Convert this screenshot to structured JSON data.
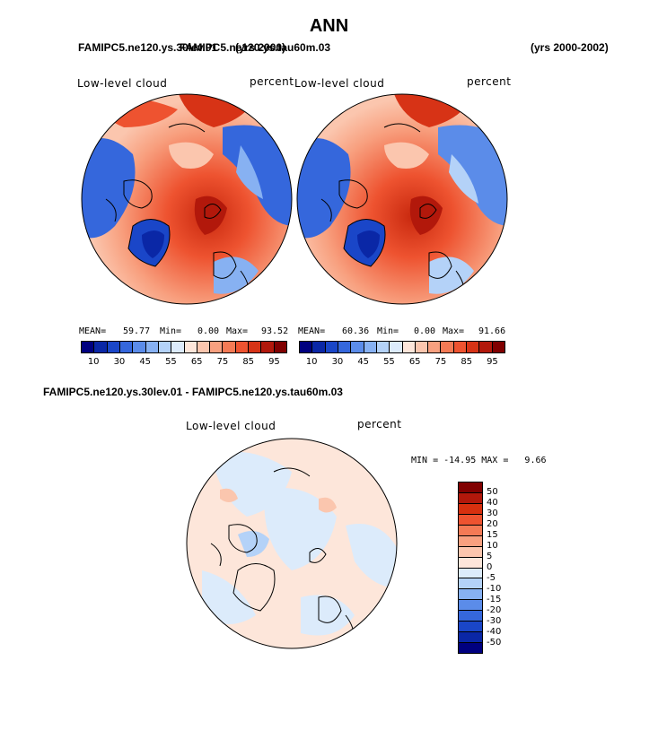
{
  "header": {
    "season": "ANN",
    "case_top_left": "FAMIPC5.ne120.ys.30lev.01",
    "case_top_left_overlap": "FAMIPC5.ne120.ys.tau60m.03",
    "years_overlap": "(yrs 2000)",
    "years_right": "(yrs 2000-2002)"
  },
  "panels": [
    {
      "title": "Low-level cloud",
      "units": "percent",
      "mean_label": "MEAN=",
      "mean_value": "59.77",
      "min_label": "Min=",
      "min_value": "0.00",
      "max_label": "Max=",
      "max_value": "93.52"
    },
    {
      "title": "Low-level cloud",
      "units": "percent",
      "mean_label": "MEAN=",
      "mean_value": "60.36",
      "min_label": "Min=",
      "min_value": "0.00",
      "max_label": "Max=",
      "max_value": "91.66"
    }
  ],
  "abs_colorbar": {
    "tick_labels": [
      "10",
      "30",
      "45",
      "55",
      "65",
      "75",
      "85",
      "95"
    ],
    "colors": [
      "#00007f",
      "#0a27a6",
      "#1a46c8",
      "#3567dc",
      "#5b8ce9",
      "#87b1f2",
      "#b4d2f8",
      "#dcebfb",
      "#fde6da",
      "#fbc6ae",
      "#f8a07f",
      "#f47a55",
      "#ee5330",
      "#d73316",
      "#b2180b",
      "#800000"
    ]
  },
  "diff_panel": {
    "case_title": "FAMIPC5.ne120.ys.30lev.01 - FAMIPC5.ne120.ys.tau60m.03",
    "title": "Low-level cloud",
    "units": "percent",
    "minmax_text": "MIN = -14.95 MAX =   9.66"
  },
  "diff_colorbar": {
    "labels": [
      "50",
      "40",
      "30",
      "20",
      "15",
      "10",
      "5",
      "0",
      "-5",
      "-10",
      "-15",
      "-20",
      "-30",
      "-40",
      "-50"
    ],
    "colors": [
      "#800000",
      "#b2180b",
      "#d7300f",
      "#ee5330",
      "#f47a55",
      "#f8a07f",
      "#fbc6ae",
      "#fde6da",
      "#dcebfb",
      "#b4d2f8",
      "#87b1f2",
      "#5b8ce9",
      "#3567dc",
      "#1a46c8",
      "#0a27a6",
      "#00007f"
    ]
  }
}
